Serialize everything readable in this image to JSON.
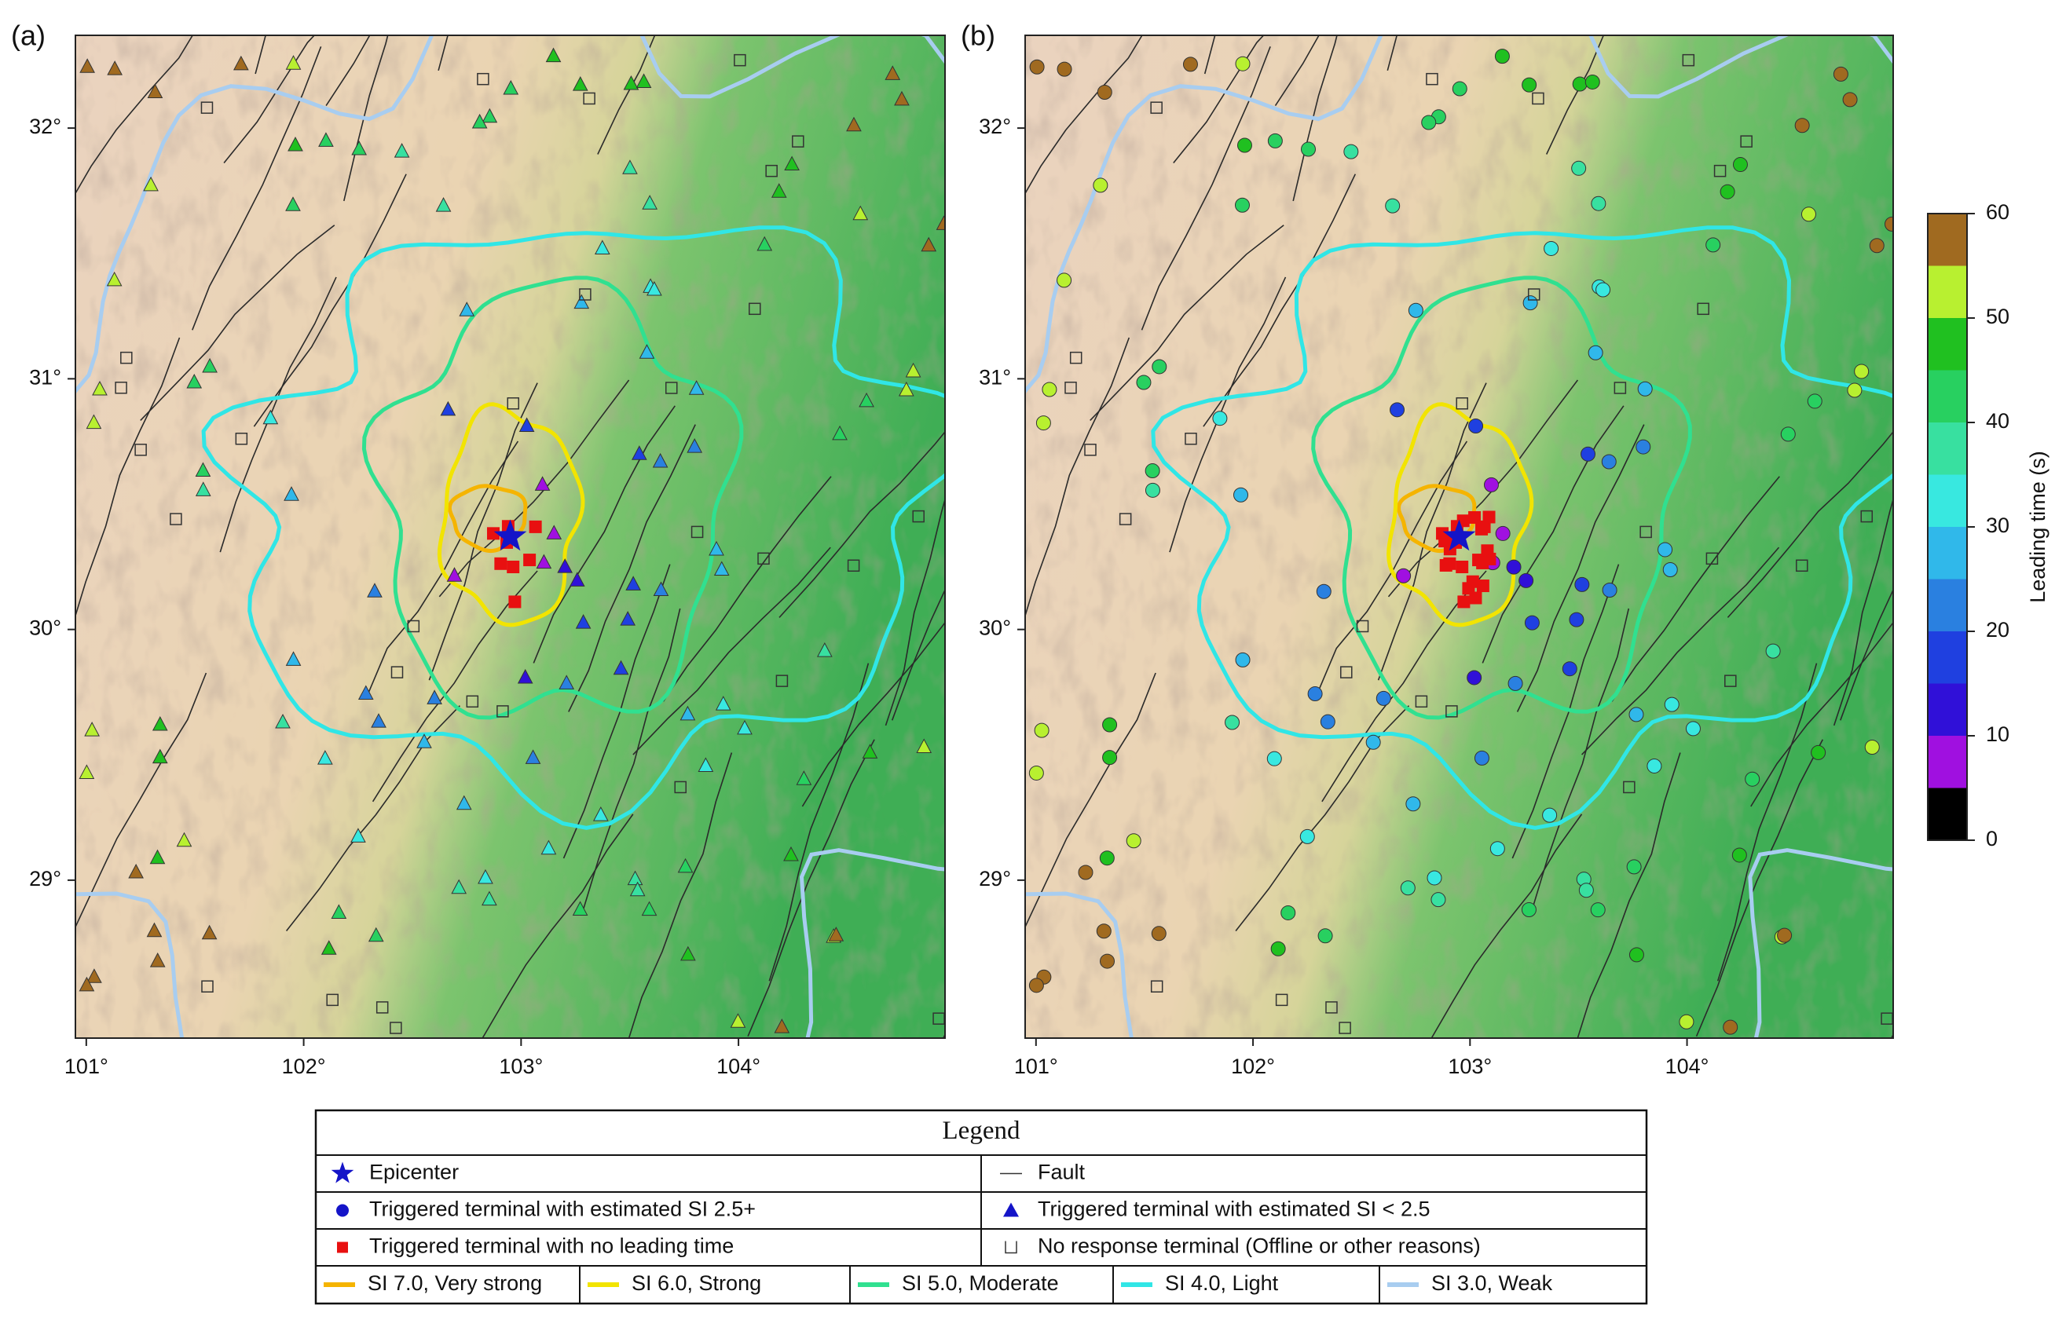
{
  "map": {
    "panels": [
      {
        "label": "(a)",
        "marker": "triangle"
      },
      {
        "label": "(b)",
        "marker": "circle"
      }
    ],
    "lon_range": [
      100.95,
      104.95
    ],
    "lat_range": [
      28.37,
      32.37
    ],
    "lon_ticks": [
      {
        "value": 101,
        "label": "101°"
      },
      {
        "value": 102,
        "label": "102°"
      },
      {
        "value": 103,
        "label": "103°"
      },
      {
        "value": 104,
        "label": "104°"
      }
    ],
    "lat_ticks": [
      {
        "value": 29,
        "label": "29°"
      },
      {
        "value": 30,
        "label": "30°"
      },
      {
        "value": 31,
        "label": "31°"
      },
      {
        "value": 32,
        "label": "32°"
      }
    ],
    "colorbar": {
      "label": "Leading time (s)",
      "range": [
        0,
        60
      ],
      "ticks": [
        0,
        10,
        20,
        30,
        40,
        50,
        60
      ],
      "bins": [
        0,
        5,
        10,
        15,
        20,
        25,
        30,
        35,
        40,
        45,
        50,
        55,
        60
      ],
      "colors": [
        "#000000",
        "#a010e0",
        "#3010d8",
        "#1f40e0",
        "#2a80e0",
        "#30b8ea",
        "#38e8e0",
        "#38e0a0",
        "#28d060",
        "#20c020",
        "#b8f030",
        "#a06a20",
        "#b06868"
      ]
    },
    "legend": {
      "title": "Legend",
      "items": [
        {
          "label": "Epicenter",
          "symbol": "star",
          "color": "#1414c8"
        },
        {
          "label": "Fault",
          "symbol": "line",
          "color": "#333333"
        },
        {
          "label": "Triggered terminal with estimated SI 2.5+",
          "symbol": "circle",
          "color": "#1414c8"
        },
        {
          "label": "Triggered terminal with estimated SI < 2.5",
          "symbol": "triangle",
          "color": "#1414c8"
        },
        {
          "label": "Triggered terminal with no leading time",
          "symbol": "square",
          "color": "#e81010"
        },
        {
          "label": "No response terminal (Offline or other reasons)",
          "symbol": "open-square",
          "color": "#333333"
        }
      ],
      "si_lines": [
        {
          "label": "SI 7.0, Very strong",
          "color": "#f5b400"
        },
        {
          "label": "SI 6.0, Strong",
          "color": "#f2e400"
        },
        {
          "label": "SI 5.0, Moderate",
          "color": "#30e090"
        },
        {
          "label": "SI 4.0, Light",
          "color": "#30e6e6"
        },
        {
          "label": "SI 3.0, Weak",
          "color": "#a8cdf0"
        }
      ]
    }
  }
}
